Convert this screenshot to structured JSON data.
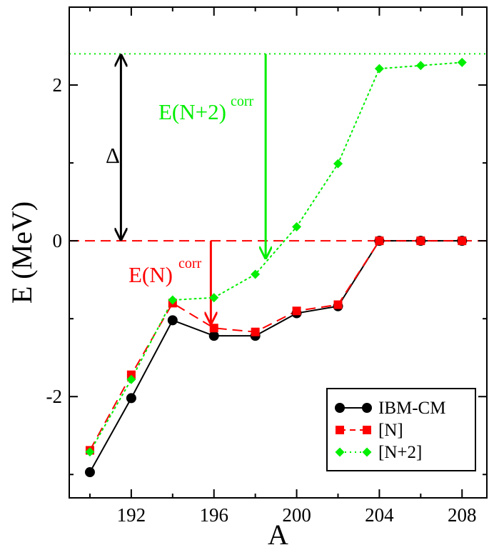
{
  "chart_data": {
    "type": "line",
    "xlabel": "A",
    "ylabel": "E (MeV)",
    "xlim": [
      189,
      209.2
    ],
    "ylim": [
      -3.3,
      3.0
    ],
    "x_ticks": [
      192,
      196,
      200,
      204,
      208
    ],
    "y_ticks": [
      -2,
      0,
      2
    ],
    "x_tick_labels": [
      "192",
      "196",
      "200",
      "204",
      "208"
    ],
    "y_tick_labels": [
      "-2",
      "0",
      "2"
    ],
    "grid": false,
    "legend_position": "bottom-right",
    "series": [
      {
        "name": "IBM-CM",
        "color": "#000000",
        "marker": "circle",
        "line": "solid",
        "x": [
          190,
          192,
          194,
          196,
          198,
          200,
          202,
          204,
          206,
          208
        ],
        "y": [
          -2.97,
          -2.02,
          -1.02,
          -1.22,
          -1.22,
          -0.93,
          -0.84,
          0.0,
          0.0,
          0.0
        ]
      },
      {
        "name": "[N]",
        "color": "#ff0000",
        "marker": "square",
        "line": "dashed",
        "x": [
          190,
          192,
          194,
          196,
          198,
          200,
          202,
          204,
          206,
          208
        ],
        "y": [
          -2.69,
          -1.72,
          -0.8,
          -1.12,
          -1.17,
          -0.9,
          -0.82,
          0.0,
          0.0,
          0.0
        ]
      },
      {
        "name": "[N+2]",
        "color": "#00ee00",
        "marker": "diamond",
        "line": "dotted",
        "x": [
          190,
          192,
          194,
          196,
          198,
          200,
          202,
          204,
          206,
          208
        ],
        "y": [
          -2.71,
          -1.78,
          -0.76,
          -0.73,
          -0.43,
          0.18,
          0.99,
          2.21,
          2.25,
          2.29
        ]
      }
    ],
    "reference_lines": [
      {
        "y": 0.0,
        "color": "#ff0000",
        "style": "dashed"
      },
      {
        "y": 2.4,
        "color": "#00ee00",
        "style": "dotted"
      }
    ],
    "annotations": {
      "delta": {
        "text": "Δ",
        "color": "#000000",
        "arrow": {
          "x": 191.5,
          "y_from": 2.4,
          "y_to": 0.0,
          "double": true
        }
      },
      "e_n_corr": {
        "text": "E(N)",
        "sup": "corr",
        "color": "#ff0000",
        "arrow": {
          "x": 195.85,
          "y_from": 0.0,
          "y_to": -1.06
        }
      },
      "e_n2_corr": {
        "text": "E(N+2)",
        "sup": "corr",
        "color": "#00ee00",
        "arrow": {
          "x": 198.5,
          "y_from": 2.4,
          "y_to": -0.22
        }
      }
    }
  }
}
